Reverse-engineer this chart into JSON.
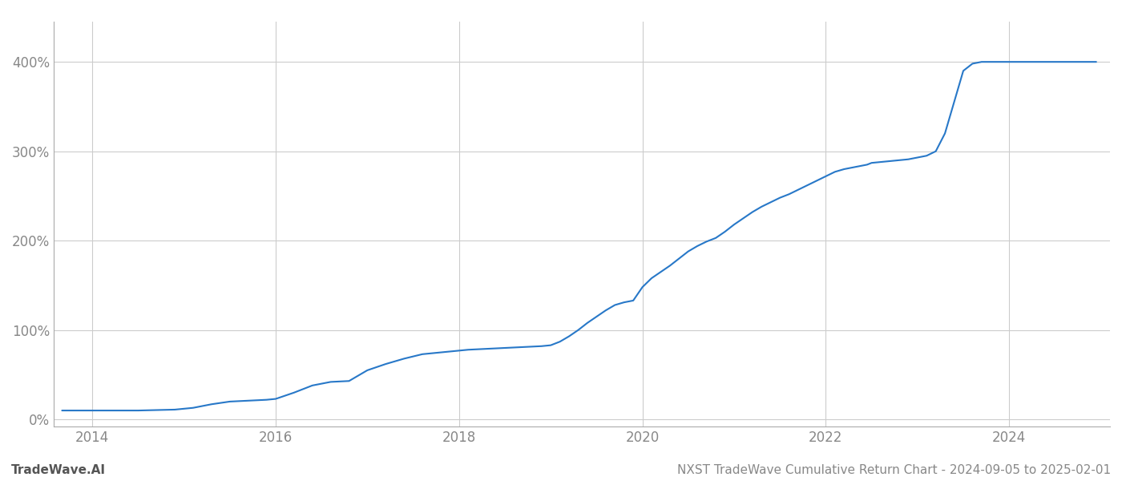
{
  "title": "",
  "footer_left": "TradeWave.AI",
  "footer_right": "NXST TradeWave Cumulative Return Chart - 2024-09-05 to 2025-02-01",
  "line_color": "#2878c8",
  "background_color": "#ffffff",
  "grid_color": "#cccccc",
  "x_years": [
    2014,
    2016,
    2018,
    2020,
    2022,
    2024
  ],
  "y_ticks": [
    0,
    100,
    200,
    300,
    400
  ],
  "xlim_start": 2013.58,
  "xlim_end": 2025.1,
  "ylim_min": -8,
  "ylim_max": 445,
  "data_x": [
    2013.67,
    2014.0,
    2014.5,
    2014.9,
    2015.0,
    2015.1,
    2015.3,
    2015.5,
    2015.7,
    2015.9,
    2016.0,
    2016.2,
    2016.4,
    2016.6,
    2016.8,
    2017.0,
    2017.2,
    2017.4,
    2017.6,
    2017.8,
    2018.0,
    2018.1,
    2018.3,
    2018.5,
    2018.7,
    2018.9,
    2019.0,
    2019.1,
    2019.2,
    2019.3,
    2019.4,
    2019.5,
    2019.6,
    2019.7,
    2019.8,
    2019.9,
    2020.0,
    2020.1,
    2020.2,
    2020.3,
    2020.4,
    2020.5,
    2020.6,
    2020.7,
    2020.8,
    2020.9,
    2021.0,
    2021.1,
    2021.2,
    2021.3,
    2021.4,
    2021.5,
    2021.6,
    2021.7,
    2021.8,
    2021.9,
    2022.0,
    2022.1,
    2022.2,
    2022.3,
    2022.4,
    2022.45,
    2022.5,
    2022.6,
    2022.7,
    2022.8,
    2022.9,
    2023.0,
    2023.05,
    2023.1,
    2023.2,
    2023.3,
    2023.4,
    2023.5,
    2023.6,
    2023.7,
    2023.8,
    2023.9,
    2024.0,
    2024.2,
    2024.4,
    2024.6,
    2024.8,
    2024.95
  ],
  "data_y": [
    10,
    10,
    10,
    11,
    12,
    13,
    17,
    20,
    21,
    22,
    23,
    30,
    38,
    42,
    43,
    55,
    62,
    68,
    73,
    75,
    77,
    78,
    79,
    80,
    81,
    82,
    83,
    87,
    93,
    100,
    108,
    115,
    122,
    128,
    131,
    133,
    148,
    158,
    165,
    172,
    180,
    188,
    194,
    199,
    203,
    210,
    218,
    225,
    232,
    238,
    243,
    248,
    252,
    257,
    262,
    267,
    272,
    277,
    280,
    282,
    284,
    285,
    287,
    288,
    289,
    290,
    291,
    293,
    294,
    295,
    300,
    320,
    355,
    390,
    398,
    400,
    400,
    400,
    400,
    400,
    400,
    400,
    400,
    400
  ]
}
